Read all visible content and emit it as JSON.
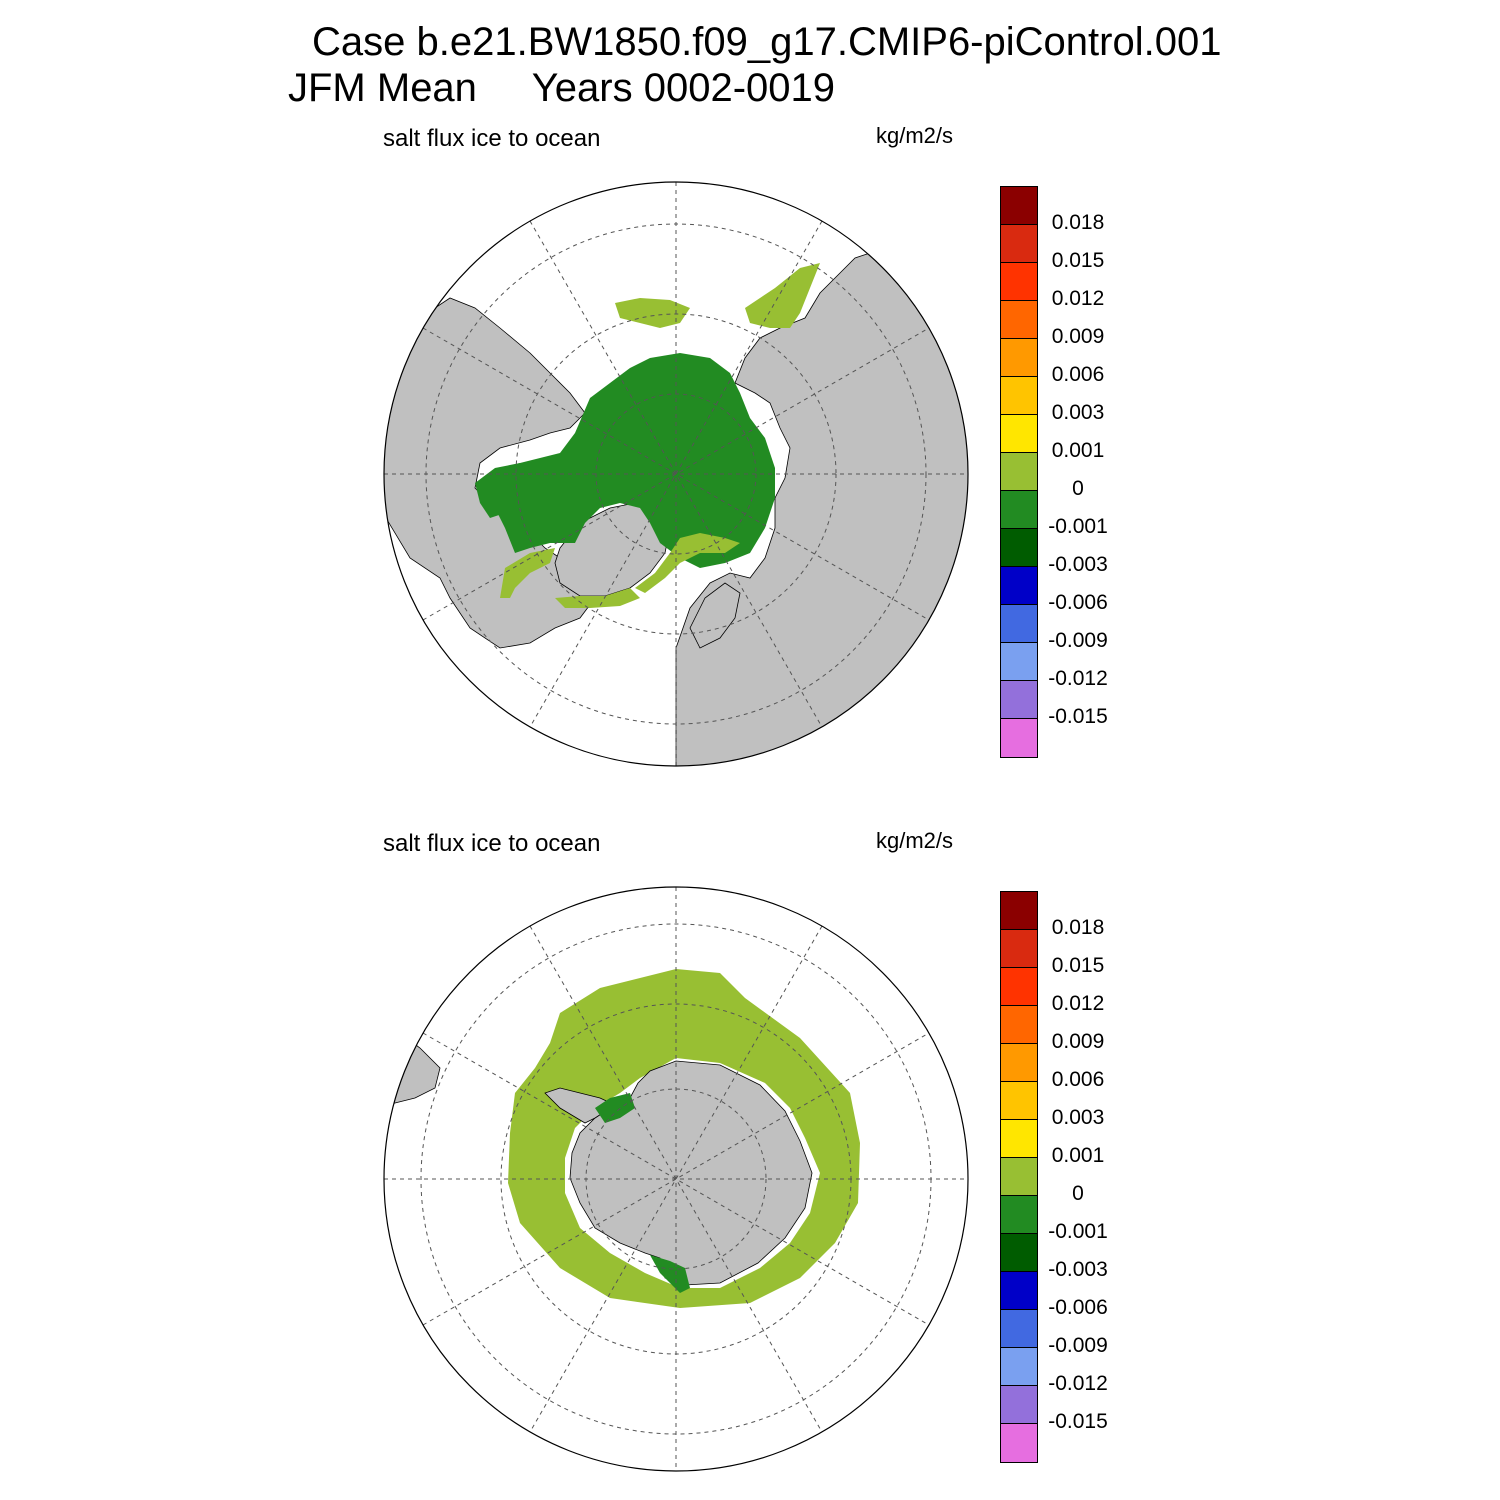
{
  "header": {
    "line1": "Case b.e21.BW1850.f09_g17.CMIP6-piControl.001",
    "line2": "JFM Mean     Years 0002-0019"
  },
  "panels": [
    {
      "id": "north",
      "title": "salt flux ice to ocean",
      "units": "kg/m2/s",
      "hemisphere": "Northern Hemisphere polar stereographic"
    },
    {
      "id": "south",
      "title": "salt flux ice to ocean",
      "units": "kg/m2/s",
      "hemisphere": "Southern Hemisphere polar stereographic"
    }
  ],
  "colorbar": {
    "colors": [
      "#8b0000",
      "#d92a10",
      "#ff3300",
      "#ff6600",
      "#ff9900",
      "#ffc400",
      "#ffe600",
      "#98bf33",
      "#228b22",
      "#005c00",
      "#0000c8",
      "#4169e1",
      "#7aa0f0",
      "#9370db",
      "#e66ee0"
    ],
    "labels": [
      "0.018",
      "0.015",
      "0.012",
      "0.009",
      "0.006",
      "0.003",
      "0.001",
      "0",
      "-0.001",
      "-0.003",
      "-0.006",
      "-0.009",
      "-0.012",
      "-0.015"
    ]
  },
  "map_colors": {
    "land": "#c0c0c0",
    "ocean_no_ice": "#ffffff",
    "flux_dark_green": "#228b22",
    "flux_light_green": "#98bf33"
  }
}
